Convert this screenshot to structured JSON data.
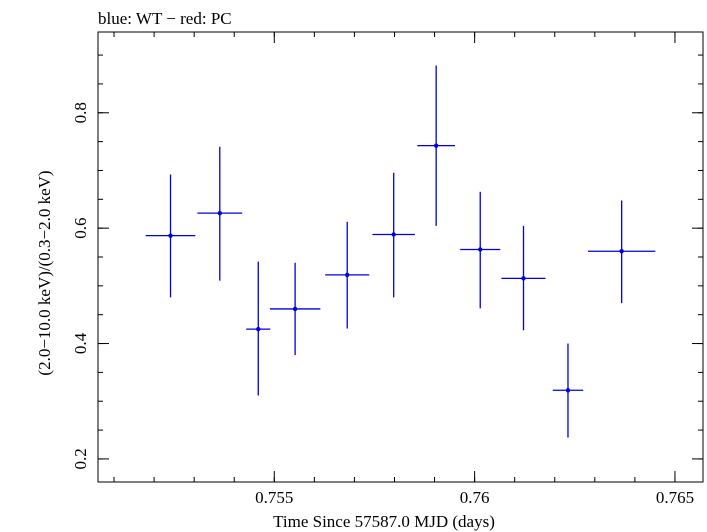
{
  "chart_data": {
    "type": "scatter",
    "title": "blue: WT − red: PC",
    "xlabel": "Time Since 57587.0 MJD (days)",
    "ylabel": "(2.0−10.0 keV)/(0.3−2.0 keV)",
    "xlim": [
      0.7506,
      0.7657
    ],
    "ylim": [
      0.16,
      0.94
    ],
    "x_ticks": [
      {
        "value": 0.755,
        "label": "0.755"
      },
      {
        "value": 0.76,
        "label": "0.76"
      },
      {
        "value": 0.765,
        "label": "0.765"
      }
    ],
    "y_ticks": [
      {
        "value": 0.2,
        "label": "0.2"
      },
      {
        "value": 0.4,
        "label": "0.4"
      },
      {
        "value": 0.6,
        "label": "0.6"
      },
      {
        "value": 0.8,
        "label": "0.8"
      }
    ],
    "x_minor_step": 0.001,
    "y_minor_step": 0.05,
    "series": [
      {
        "color": "#0000e0",
        "points": [
          {
            "x": 0.75241,
            "xerr": 0.00062,
            "y": 0.587,
            "ylo": 0.48,
            "yhi": 0.693
          },
          {
            "x": 0.75364,
            "xerr": 0.00056,
            "y": 0.626,
            "ylo": 0.509,
            "yhi": 0.741
          },
          {
            "x": 0.7546,
            "xerr": 0.0003,
            "y": 0.425,
            "ylo": 0.31,
            "yhi": 0.542
          },
          {
            "x": 0.75552,
            "xerr": 0.00063,
            "y": 0.46,
            "ylo": 0.38,
            "yhi": 0.54
          },
          {
            "x": 0.75682,
            "xerr": 0.00055,
            "y": 0.519,
            "ylo": 0.426,
            "yhi": 0.611
          },
          {
            "x": 0.75798,
            "xerr": 0.00053,
            "y": 0.589,
            "ylo": 0.48,
            "yhi": 0.696
          },
          {
            "x": 0.75904,
            "xerr": 0.00047,
            "y": 0.743,
            "ylo": 0.604,
            "yhi": 0.882
          },
          {
            "x": 0.76014,
            "xerr": 0.0005,
            "y": 0.563,
            "ylo": 0.461,
            "yhi": 0.663
          },
          {
            "x": 0.76122,
            "xerr": 0.00055,
            "y": 0.513,
            "ylo": 0.423,
            "yhi": 0.604
          },
          {
            "x": 0.76233,
            "xerr": 0.00038,
            "y": 0.319,
            "ylo": 0.237,
            "yhi": 0.4
          },
          {
            "x": 0.76367,
            "xerr": 0.00084,
            "y": 0.56,
            "ylo": 0.47,
            "yhi": 0.648
          }
        ]
      }
    ]
  }
}
